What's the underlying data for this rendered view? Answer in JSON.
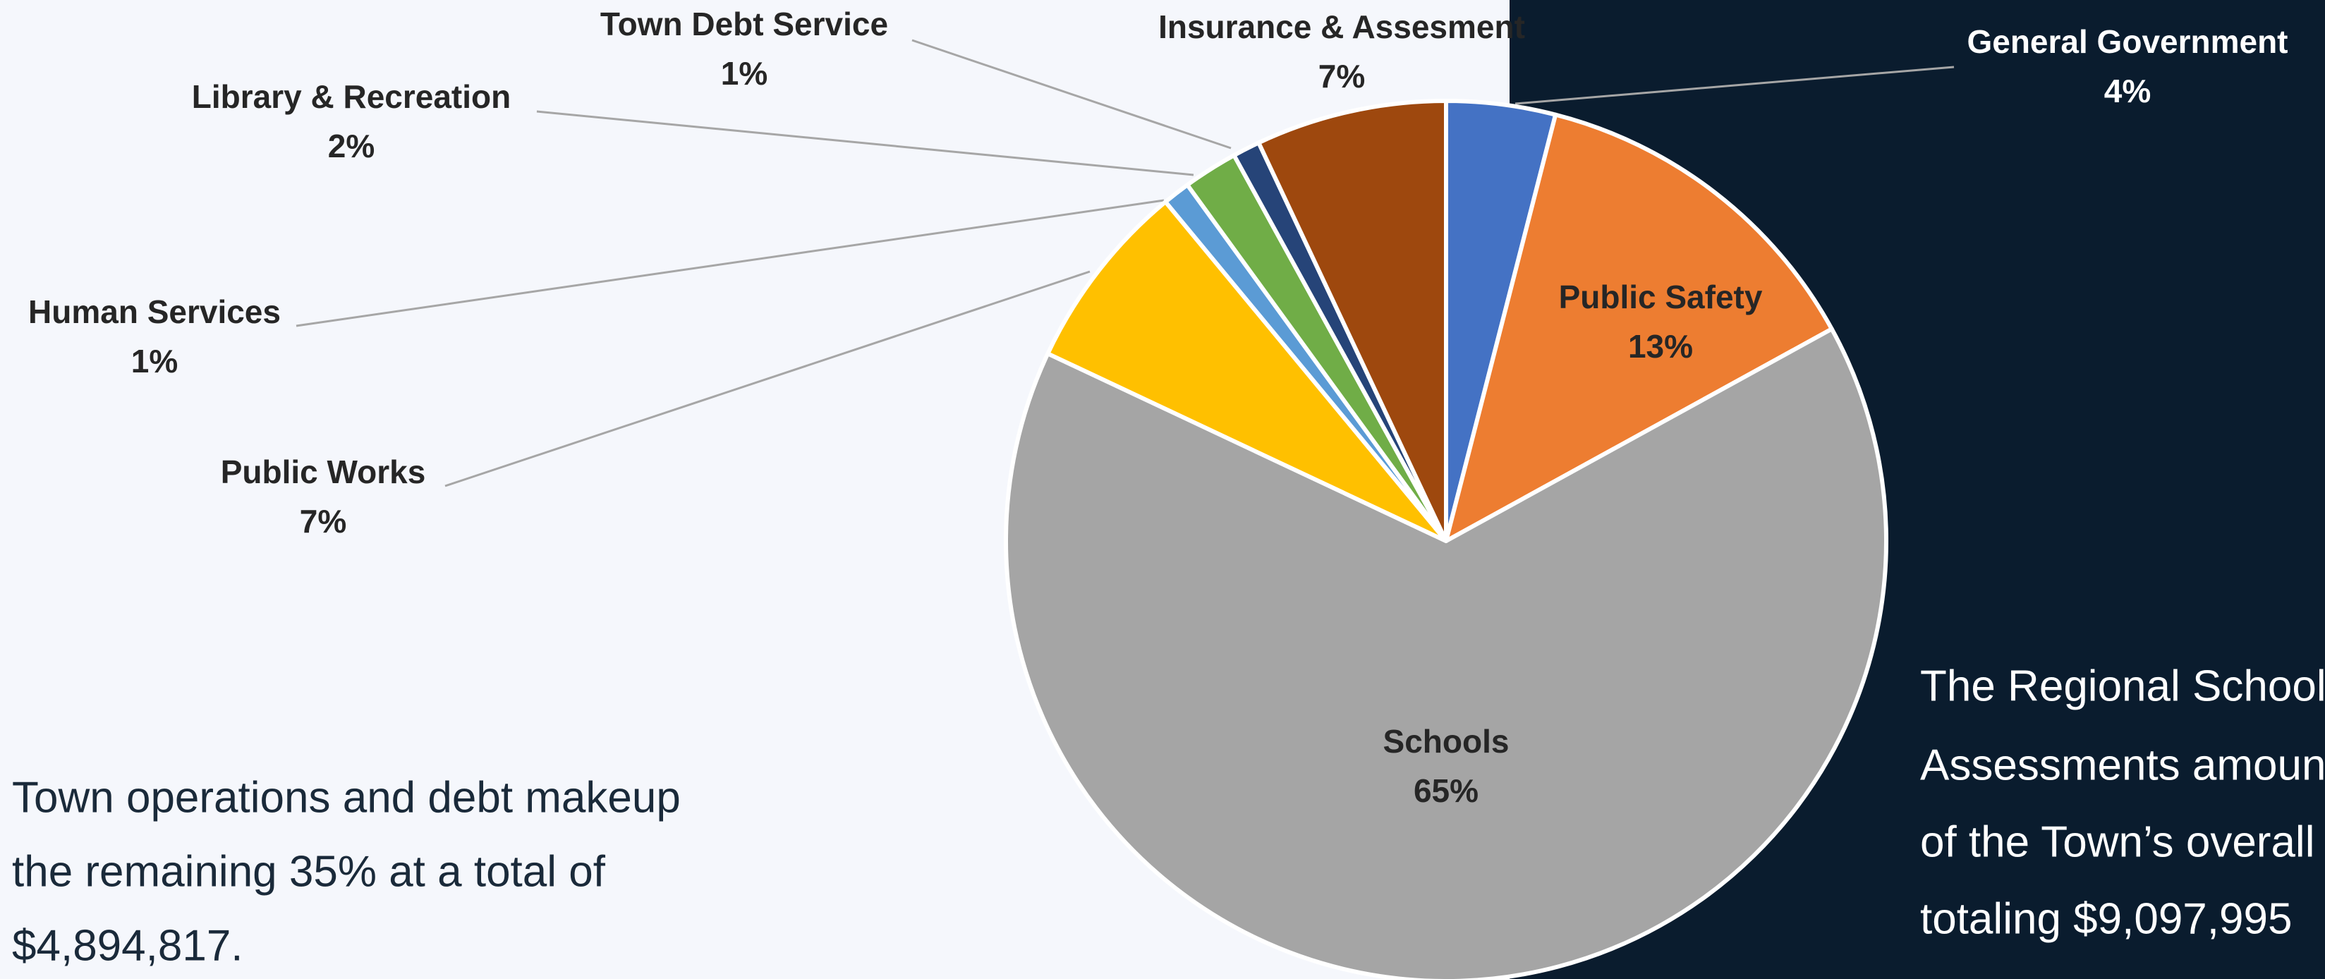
{
  "chart_data": {
    "type": "pie",
    "categories": [
      "General Government",
      "Public Safety",
      "Schools",
      "Public Works",
      "Human Services",
      "Library & Recreation",
      "Town Debt Service",
      "Insurance & Assesment"
    ],
    "values": [
      4,
      13,
      65,
      7,
      1,
      2,
      1,
      7
    ],
    "value_labels": [
      "4%",
      "13%",
      "65%",
      "7%",
      "1%",
      "2%",
      "1%",
      "7%"
    ],
    "colors": [
      "#4472c4",
      "#ed7d31",
      "#a5a5a5",
      "#ffc000",
      "#5b9bd5",
      "#70ad47",
      "#264478",
      "#9e480e"
    ],
    "annotations": [
      {
        "lines": [
          "Town operations and debt makeup",
          "the remaining 35% at a total of",
          "$4,894,817."
        ]
      },
      {
        "lines": [
          "The Regional School D",
          "Assessments amount",
          "of the Town’s overall",
          "totaling $9,097,995"
        ]
      }
    ]
  }
}
